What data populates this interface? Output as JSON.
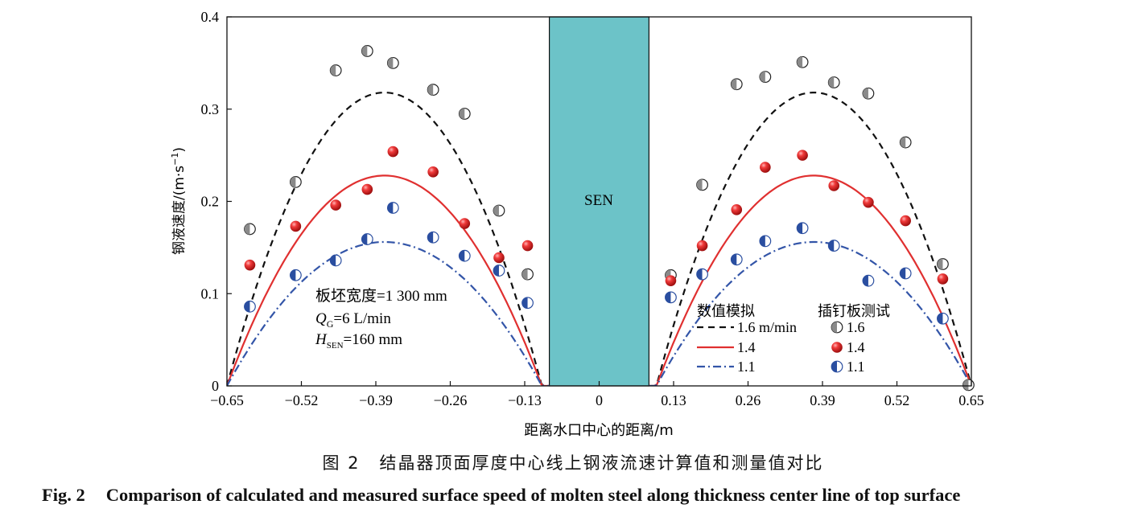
{
  "chart_data": {
    "type": "scatter",
    "title": "",
    "xlabel": "距离水口中心的距离/m",
    "ylabel_prefix": "钢液速度/(m·s",
    "ylabel_sup": "−1",
    "ylabel_suffix": ")",
    "xlim": [
      -0.65,
      0.65
    ],
    "ylim": [
      0,
      0.4
    ],
    "xticks": [
      -0.65,
      -0.52,
      -0.39,
      -0.26,
      -0.13,
      0,
      0.13,
      0.26,
      0.39,
      0.52,
      0.65
    ],
    "xtick_labels": [
      "−0.65",
      "−0.52",
      "−0.39",
      "−0.26",
      "−0.13",
      "0",
      "0.13",
      "0.26",
      "0.39",
      "0.52",
      "0.65"
    ],
    "yticks": [
      0,
      0.1,
      0.2,
      0.3,
      0.4
    ],
    "ytick_labels": [
      "0",
      "0.1",
      "0.2",
      "0.3",
      "0.4"
    ],
    "sen": {
      "label": "SEN",
      "x_range": [
        -0.087,
        0.087
      ],
      "color": "#6cc3c8"
    },
    "model_series": [
      {
        "name": "1.6 m/min",
        "legend_label": "1.6 m/min",
        "peak": 0.318,
        "color": "#111111",
        "dash": "8,6",
        "left_x": [
          -0.65,
          -0.087
        ],
        "left_center": -0.375,
        "right_x": [
          0.087,
          0.65
        ],
        "right_center": 0.375
      },
      {
        "name": "1.4",
        "legend_label": "1.4",
        "peak": 0.228,
        "color": "#e03030",
        "dash": "",
        "left_x": [
          -0.65,
          -0.087
        ],
        "left_center": -0.375,
        "right_x": [
          0.087,
          0.65
        ],
        "right_center": 0.375
      },
      {
        "name": "1.1",
        "legend_label": "1.1",
        "peak": 0.156,
        "color": "#3355a8",
        "dash": "10,4,2,4",
        "left_x": [
          -0.65,
          -0.087
        ],
        "left_center": -0.375,
        "right_x": [
          0.087,
          0.65
        ],
        "right_center": 0.375
      }
    ],
    "measured_series": [
      {
        "name": "1.6",
        "legend_label": "1.6",
        "marker": "half-gray",
        "points": [
          [
            -0.61,
            0.17
          ],
          [
            -0.53,
            0.221
          ],
          [
            -0.46,
            0.342
          ],
          [
            -0.405,
            0.363
          ],
          [
            -0.36,
            0.35
          ],
          [
            -0.29,
            0.321
          ],
          [
            -0.235,
            0.295
          ],
          [
            -0.175,
            0.19
          ],
          [
            -0.125,
            0.121
          ],
          [
            0.125,
            0.12
          ],
          [
            0.18,
            0.218
          ],
          [
            0.24,
            0.327
          ],
          [
            0.29,
            0.335
          ],
          [
            0.355,
            0.351
          ],
          [
            0.41,
            0.329
          ],
          [
            0.47,
            0.317
          ],
          [
            0.535,
            0.264
          ],
          [
            0.6,
            0.132
          ],
          [
            0.645,
            0.001
          ]
        ]
      },
      {
        "name": "1.4",
        "legend_label": "1.4",
        "marker": "red-sphere",
        "points": [
          [
            -0.61,
            0.131
          ],
          [
            -0.53,
            0.173
          ],
          [
            -0.46,
            0.196
          ],
          [
            -0.405,
            0.213
          ],
          [
            -0.36,
            0.254
          ],
          [
            -0.29,
            0.232
          ],
          [
            -0.235,
            0.176
          ],
          [
            -0.175,
            0.139
          ],
          [
            -0.125,
            0.152
          ],
          [
            0.125,
            0.114
          ],
          [
            0.18,
            0.152
          ],
          [
            0.24,
            0.191
          ],
          [
            0.29,
            0.237
          ],
          [
            0.355,
            0.25
          ],
          [
            0.41,
            0.217
          ],
          [
            0.47,
            0.199
          ],
          [
            0.535,
            0.179
          ],
          [
            0.6,
            0.116
          ]
        ]
      },
      {
        "name": "1.1",
        "legend_label": "1.1",
        "marker": "half-blue",
        "points": [
          [
            -0.61,
            0.086
          ],
          [
            -0.53,
            0.12
          ],
          [
            -0.46,
            0.136
          ],
          [
            -0.405,
            0.159
          ],
          [
            -0.36,
            0.193
          ],
          [
            -0.29,
            0.161
          ],
          [
            -0.235,
            0.141
          ],
          [
            -0.175,
            0.125
          ],
          [
            -0.125,
            0.09
          ],
          [
            0.125,
            0.096
          ],
          [
            0.18,
            0.121
          ],
          [
            0.24,
            0.137
          ],
          [
            0.29,
            0.157
          ],
          [
            0.355,
            0.171
          ],
          [
            0.41,
            0.152
          ],
          [
            0.47,
            0.114
          ],
          [
            0.535,
            0.122
          ],
          [
            0.6,
            0.073
          ]
        ]
      }
    ],
    "legend": {
      "model_title": "数值模拟",
      "measured_title": "插钉板测试",
      "placement": "bottom-right"
    },
    "annotations": {
      "width_label": "板坯宽度=1 300 mm",
      "qg_main": "Q",
      "qg_sub": "G",
      "qg_value": "=6 L/min",
      "hsen_main": "H",
      "hsen_sub": "SEN",
      "hsen_value": "=160 mm"
    }
  },
  "caption": {
    "cn_number": "图 2",
    "cn_text": "结晶器顶面厚度中心线上钢液流速计算值和测量值对比",
    "en_number": "Fig. 2",
    "en_text": "Comparison of calculated and measured surface speed of molten steel along thickness center line of top surface"
  }
}
